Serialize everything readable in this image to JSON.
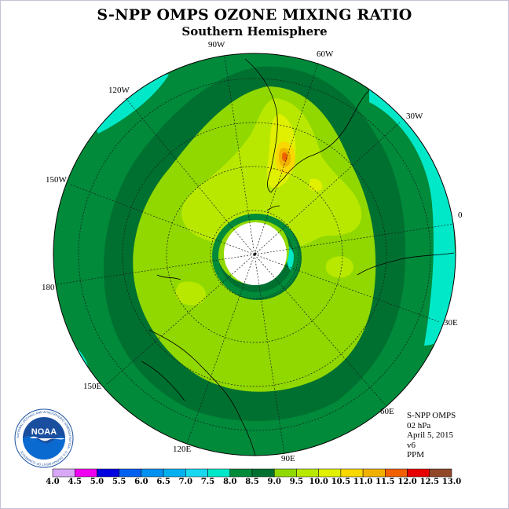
{
  "title": "S-NPP OMPS OZONE MIXING RATIO",
  "subtitle": "Southern Hemisphere",
  "longitude_labels": [
    {
      "id": "90w",
      "text": "90W"
    },
    {
      "id": "60w",
      "text": "60W"
    },
    {
      "id": "30w",
      "text": "30W"
    },
    {
      "id": "120w",
      "text": "120W"
    },
    {
      "id": "150w",
      "text": "150W"
    },
    {
      "id": "0",
      "text": "0"
    },
    {
      "id": "180",
      "text": "180"
    },
    {
      "id": "30e",
      "text": "30E"
    },
    {
      "id": "150e",
      "text": "150E"
    },
    {
      "id": "60e",
      "text": "60E"
    },
    {
      "id": "120e",
      "text": "120E"
    },
    {
      "id": "90e",
      "text": "90E"
    }
  ],
  "info": {
    "instrument": "S-NPP OMPS",
    "level": "02 hPa",
    "date": "April 5, 2015",
    "version": "v6",
    "units": "PPM"
  },
  "logo": {
    "text": "NOAA",
    "ring_text": "NATIONAL OCEANIC AND ATMOSPHERIC ADMINISTRATION · U.S. DEPARTMENT OF COMMERCE"
  },
  "colorbar": {
    "labels": [
      "4.0",
      "4.5",
      "5.0",
      "5.5",
      "6.0",
      "6.5",
      "7.0",
      "7.5",
      "8.0",
      "8.5",
      "9.0",
      "9.5",
      "10.0",
      "10.5",
      "11.0",
      "11.5",
      "12.0",
      "12.5",
      "13.0"
    ],
    "colors": [
      "#b080f0",
      "#d8a8f8",
      "#f000f0",
      "#0000e0",
      "#0060f0",
      "#0090f0",
      "#00b0f0",
      "#18d8f0",
      "#00e8c8",
      "#008a3a",
      "#007030",
      "#90d800",
      "#b8e800",
      "#e0f000",
      "#f8d800",
      "#f0b000",
      "#f06000",
      "#e80000",
      "#904828"
    ]
  },
  "colors": {
    "level_8_0": "#00e8c8",
    "level_8_5": "#008a3a",
    "level_9_0": "#007030",
    "level_9_5": "#90d800",
    "level_10_0": "#b8e800",
    "level_10_5": "#e0f000",
    "level_11_0": "#f8d800",
    "level_11_5": "#f0b000",
    "level_12_0": "#f06000"
  }
}
